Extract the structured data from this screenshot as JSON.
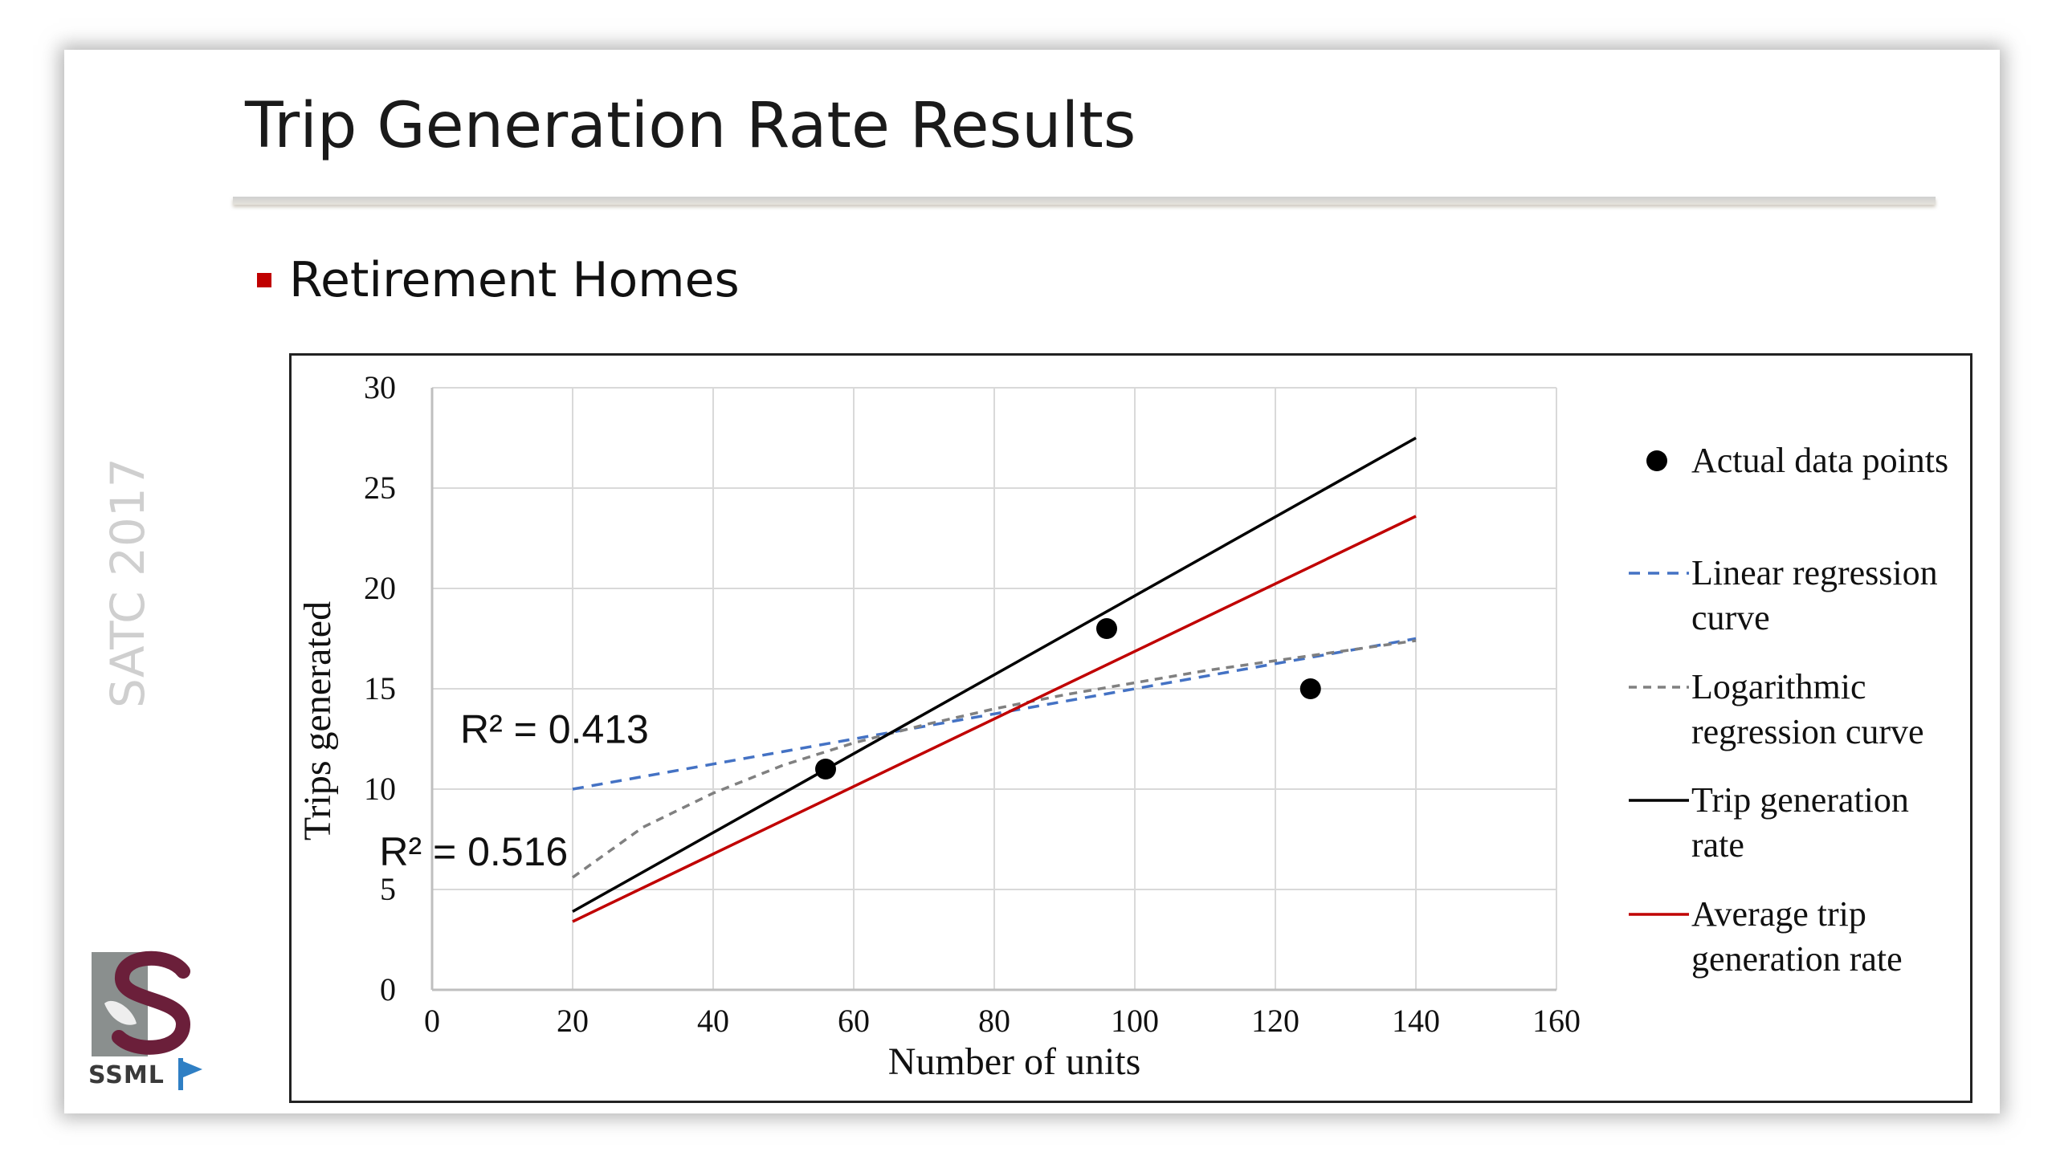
{
  "slide": {
    "title": "Trip Generation Rate Results",
    "bullet": "Retirement Homes",
    "side_tag": "SATC 2017",
    "logo_text": "SSML",
    "logo_icon": "ssml-s-logo-icon"
  },
  "colors": {
    "accent_red": "#c00000",
    "linear": "#4472c4",
    "logarithmic": "#808080",
    "trip_rate": "#000000",
    "avg_rate": "#c00000"
  },
  "chart_data": {
    "type": "scatter",
    "title": "",
    "xlabel": "Number of units",
    "ylabel": "Trips generated",
    "xlim": [
      0,
      160
    ],
    "ylim": [
      0,
      30
    ],
    "x_ticks": [
      "0",
      "20",
      "40",
      "60",
      "80",
      "100",
      "120",
      "140",
      "160"
    ],
    "y_ticks": [
      "0",
      "5",
      "10",
      "15",
      "20",
      "25",
      "30"
    ],
    "grid": true,
    "legend_position": "right",
    "points": [
      {
        "x": 56,
        "y": 11
      },
      {
        "x": 96,
        "y": 18
      },
      {
        "x": 125,
        "y": 15
      }
    ],
    "series": [
      {
        "name": "Actual data points",
        "kind": "points"
      },
      {
        "name": "Linear regression curve",
        "kind": "line",
        "style": "dashed",
        "x": [
          20,
          140
        ],
        "y": [
          10,
          17.5
        ]
      },
      {
        "name": "Logarithmic regression curve",
        "kind": "curve",
        "style": "dashed",
        "x": [
          20,
          30,
          40,
          50,
          60,
          70,
          80,
          90,
          100,
          110,
          120,
          130,
          140
        ],
        "y": [
          5.6,
          8.1,
          9.8,
          11.2,
          12.3,
          13.2,
          14.0,
          14.7,
          15.3,
          15.9,
          16.4,
          16.9,
          17.4
        ]
      },
      {
        "name": "Trip generation rate",
        "kind": "line",
        "style": "solid",
        "x": [
          20,
          140
        ],
        "y": [
          3.9,
          27.5
        ]
      },
      {
        "name": "Average trip generation rate",
        "kind": "line",
        "style": "solid",
        "x": [
          20,
          140
        ],
        "y": [
          3.4,
          23.6
        ]
      }
    ],
    "annotations": [
      {
        "text": "R² = 0.413",
        "x": 4,
        "y": 12.3
      },
      {
        "text": "R² = 0.516",
        "x": -7.5,
        "y": 6.2
      }
    ],
    "legend": [
      {
        "lines": [
          "Actual data points"
        ]
      },
      {
        "lines": [
          "Linear regression",
          "curve"
        ]
      },
      {
        "lines": [
          "Logarithmic",
          "regression curve"
        ]
      },
      {
        "lines": [
          "Trip generation",
          "rate"
        ]
      },
      {
        "lines": [
          "Average trip",
          "generation rate"
        ]
      }
    ]
  }
}
